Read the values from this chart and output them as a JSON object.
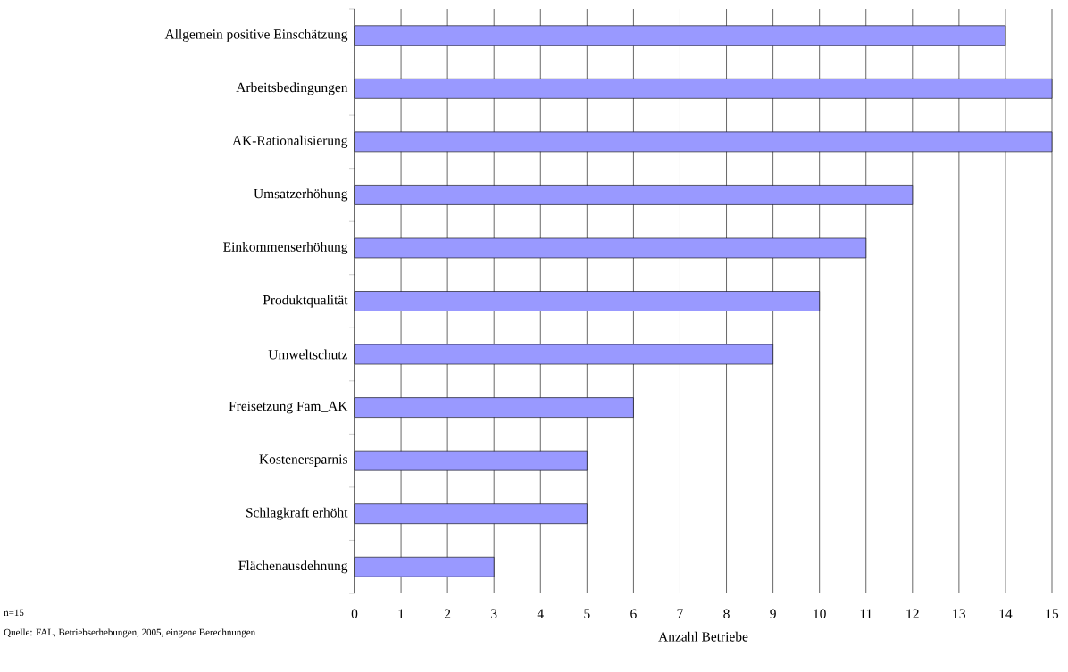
{
  "chart_data": {
    "type": "bar",
    "orientation": "horizontal",
    "categories": [
      "Allgemein positive Einschätzung",
      "Arbeitsbedingungen",
      "AK-Rationalisierung",
      "Umsatzerhöhung",
      "Einkommenserhöhung",
      "Produktqualität",
      "Umweltschutz",
      "Freisetzung Fam_AK",
      "Kostenersparnis",
      "Schlagkraft erhöht",
      "Flächenausdehnung"
    ],
    "values": [
      14,
      15,
      15,
      12,
      11,
      10,
      9,
      6,
      5,
      5,
      3
    ],
    "color": "#9999ff",
    "xlim": [
      0,
      15
    ],
    "xticks": [
      0,
      1,
      2,
      3,
      4,
      5,
      6,
      7,
      8,
      9,
      10,
      11,
      12,
      13,
      14,
      15
    ],
    "xlabel": "Anzahl Betriebe",
    "grid": "x",
    "annotations": [
      "n=15",
      "Quelle: FAL, Betriebserhebungen, 2005, eingene Berechnungen"
    ]
  }
}
